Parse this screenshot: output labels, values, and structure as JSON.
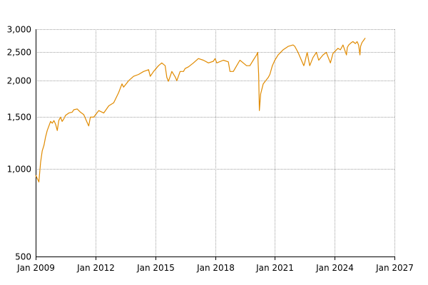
{
  "chart_data": {
    "type": "line",
    "title": "",
    "xlabel": "",
    "ylabel": "",
    "y_scale": "log",
    "ylim": [
      500,
      3000
    ],
    "xlim": [
      "2009-01-01",
      "2027-01-01"
    ],
    "grid": true,
    "legend": "none",
    "x_ticks": [
      {
        "date": "2009-01-01",
        "label": "Jan 2009"
      },
      {
        "date": "2012-01-01",
        "label": "Jan 2012"
      },
      {
        "date": "2015-01-01",
        "label": "Jan 2015"
      },
      {
        "date": "2018-01-01",
        "label": "Jan 2018"
      },
      {
        "date": "2021-01-01",
        "label": "Jan 2021"
      },
      {
        "date": "2024-01-01",
        "label": "Jan 2024"
      },
      {
        "date": "2027-01-01",
        "label": "Jan 2027"
      }
    ],
    "y_ticks": [
      {
        "value": 500,
        "label": "500"
      },
      {
        "value": 1000,
        "label": "1,000"
      },
      {
        "value": 1500,
        "label": "1,500"
      },
      {
        "value": 2000,
        "label": "2,000"
      },
      {
        "value": 2500,
        "label": "2,500"
      },
      {
        "value": 3000,
        "label": "3,000"
      }
    ],
    "series": [
      {
        "color": "#e08a00",
        "x": [
          "2009-01-01",
          "2009-03-01",
          "2009-04-01",
          "2009-05-01",
          "2009-06-01",
          "2009-07-01",
          "2009-08-01",
          "2009-09-01",
          "2009-10-01",
          "2009-11-01",
          "2009-12-01",
          "2010-01-01",
          "2010-02-01",
          "2010-03-01",
          "2010-04-01",
          "2010-05-01",
          "2010-06-01",
          "2010-07-01",
          "2010-09-01",
          "2010-11-01",
          "2010-12-01",
          "2011-02-01",
          "2011-04-01",
          "2011-06-01",
          "2011-08-01",
          "2011-09-01",
          "2011-10-01",
          "2011-12-01",
          "2012-03-01",
          "2012-06-01",
          "2012-09-01",
          "2012-12-01",
          "2013-03-01",
          "2013-05-01",
          "2013-06-01",
          "2013-09-01",
          "2013-12-01",
          "2014-03-01",
          "2014-06-01",
          "2014-09-01",
          "2014-10-01",
          "2014-12-01",
          "2015-03-01",
          "2015-05-01",
          "2015-07-01",
          "2015-08-01",
          "2015-09-01",
          "2015-11-01",
          "2016-01-01",
          "2016-02-01",
          "2016-04-01",
          "2016-06-01",
          "2016-07-01",
          "2016-09-01",
          "2016-12-01",
          "2017-03-01",
          "2017-06-01",
          "2017-09-01",
          "2017-12-01",
          "2018-01-01",
          "2018-02-01",
          "2018-06-01",
          "2018-09-01",
          "2018-10-01",
          "2018-12-01",
          "2019-02-01",
          "2019-04-01",
          "2019-06-01",
          "2019-08-01",
          "2019-10-01",
          "2019-12-01",
          "2020-01-01",
          "2020-02-01",
          "2020-02-20",
          "2020-03-10",
          "2020-03-23",
          "2020-04-15",
          "2020-06-01",
          "2020-09-01",
          "2020-10-01",
          "2020-11-15",
          "2020-12-31",
          "2021-03-01",
          "2021-06-01",
          "2021-09-01",
          "2021-12-01",
          "2022-01-01",
          "2022-03-01",
          "2022-06-15",
          "2022-07-01",
          "2022-08-15",
          "2022-10-01",
          "2022-12-01",
          "2023-02-01",
          "2023-03-15",
          "2023-06-01",
          "2023-08-01",
          "2023-10-15",
          "2023-12-01",
          "2024-03-01",
          "2024-04-15",
          "2024-06-01",
          "2024-08-05",
          "2024-08-20",
          "2024-09-15",
          "2024-11-01",
          "2024-12-01",
          "2025-01-15",
          "2025-02-15",
          "2025-03-15",
          "2025-04-08",
          "2025-04-20",
          "2025-05-15",
          "2025-06-15",
          "2025-07-15"
        ],
        "y": [
          950,
          900,
          1050,
          1150,
          1200,
          1280,
          1350,
          1400,
          1450,
          1430,
          1460,
          1420,
          1350,
          1460,
          1500,
          1450,
          1480,
          1520,
          1550,
          1560,
          1590,
          1600,
          1560,
          1530,
          1440,
          1400,
          1500,
          1500,
          1580,
          1550,
          1640,
          1680,
          1820,
          1950,
          1900,
          2000,
          2070,
          2100,
          2150,
          2180,
          2070,
          2150,
          2250,
          2300,
          2250,
          2050,
          1990,
          2150,
          2060,
          2000,
          2150,
          2150,
          2200,
          2230,
          2300,
          2380,
          2350,
          2300,
          2330,
          2380,
          2300,
          2350,
          2320,
          2150,
          2150,
          2250,
          2350,
          2300,
          2250,
          2250,
          2350,
          2400,
          2450,
          2500,
          2100,
          1580,
          1800,
          1950,
          2050,
          2100,
          2250,
          2350,
          2450,
          2550,
          2620,
          2650,
          2620,
          2500,
          2250,
          2300,
          2500,
          2250,
          2400,
          2500,
          2350,
          2450,
          2500,
          2300,
          2480,
          2580,
          2550,
          2650,
          2450,
          2600,
          2650,
          2700,
          2720,
          2680,
          2720,
          2650,
          2450,
          2620,
          2700,
          2750,
          2800
        ]
      }
    ]
  }
}
